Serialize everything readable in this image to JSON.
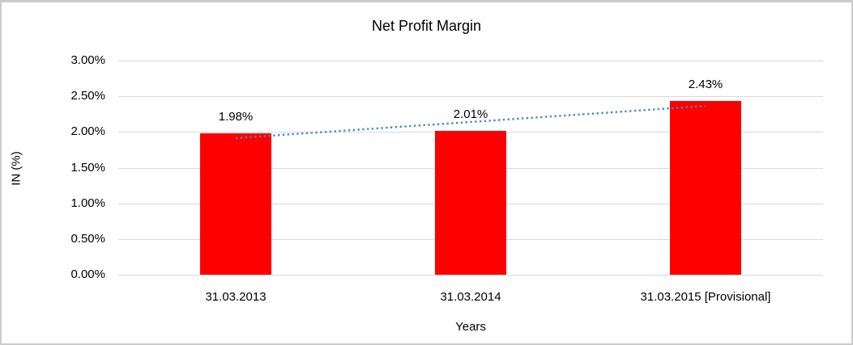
{
  "chart_data": {
    "type": "bar",
    "title": "Net Profit Margin",
    "xlabel": "Years",
    "ylabel": "IN (%)",
    "categories": [
      "31.03.2013",
      "31.03.2014",
      "31.03.2015 [Provisional]"
    ],
    "values": [
      1.98,
      2.01,
      2.43
    ],
    "value_labels": [
      "1.98%",
      "2.01%",
      "2.43%"
    ],
    "ylim": [
      0,
      3.0
    ],
    "yticks": [
      {
        "value": 0.0,
        "label": "0.00%"
      },
      {
        "value": 0.5,
        "label": "0.50%"
      },
      {
        "value": 1.0,
        "label": "1.00%"
      },
      {
        "value": 1.5,
        "label": "1.50%"
      },
      {
        "value": 2.0,
        "label": "2.00%"
      },
      {
        "value": 2.5,
        "label": "2.50%"
      },
      {
        "value": 3.0,
        "label": "3.00%"
      }
    ],
    "grid": true,
    "legend": "none",
    "colors": {
      "bar": "#ff0000",
      "gridline": "#d9d9d9",
      "trendline": "#4e87c5",
      "text": "#000000"
    },
    "trendline": {
      "type": "linear",
      "style": "dotted",
      "start_value": 1.915,
      "end_value": 2.365
    }
  }
}
